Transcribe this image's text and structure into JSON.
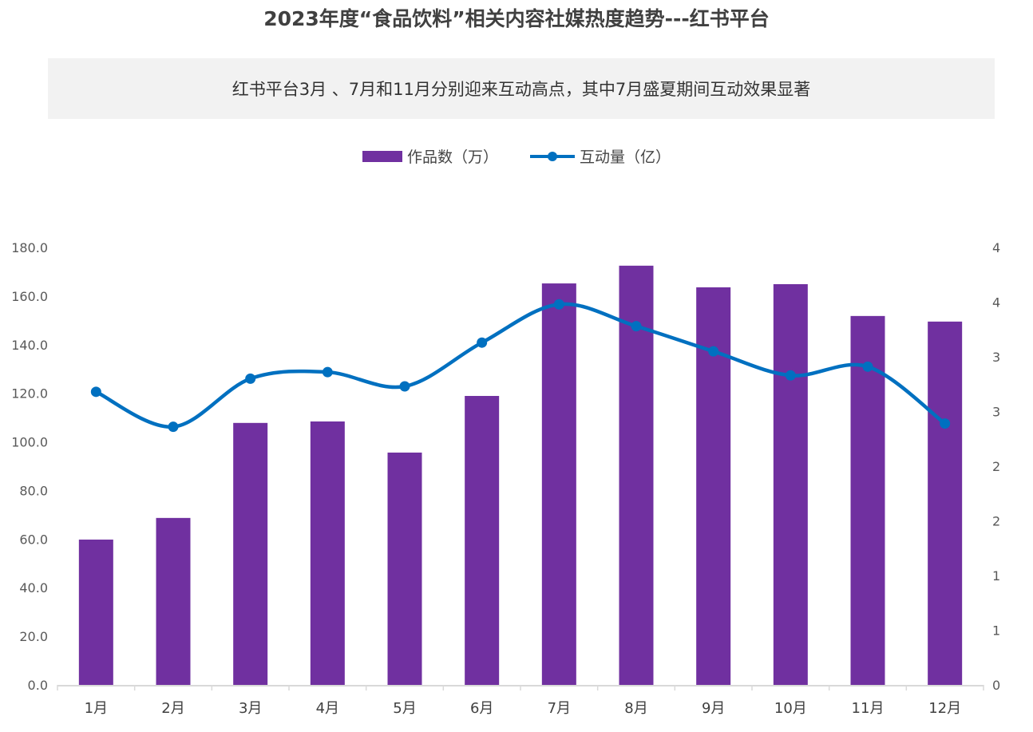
{
  "title": "2023年度“食品饮料”相关内容社媒热度趋势---红书平台",
  "subtitle": "红书平台3月 、7月和11月分别迎来互动高点，其中7月盛夏期间互动效果显著",
  "chart_data": {
    "type": "bar+line",
    "categories": [
      "1月",
      "2月",
      "3月",
      "4月",
      "5月",
      "6月",
      "7月",
      "8月",
      "9月",
      "10月",
      "11月",
      "12月"
    ],
    "series": [
      {
        "name": "作品数（万）",
        "type": "bar",
        "axis": "left",
        "color": "#7030a0",
        "values": [
          59.8,
          68.7,
          107.8,
          108.4,
          95.6,
          118.9,
          165.2,
          172.5,
          163.6,
          164.9,
          151.8,
          149.5
        ]
      },
      {
        "name": "互动量（亿）",
        "type": "line",
        "axis": "right",
        "smooth": true,
        "color": "#0070c0",
        "values": [
          2.68,
          2.36,
          2.8,
          2.86,
          2.73,
          3.13,
          3.48,
          3.28,
          3.05,
          2.83,
          2.91,
          2.39
        ]
      }
    ],
    "y_left": {
      "range": [
        0,
        180
      ],
      "ticks": [
        "0.0",
        "20.0",
        "40.0",
        "60.0",
        "80.0",
        "100.0",
        "120.0",
        "140.0",
        "160.0",
        "180.0"
      ]
    },
    "y_right": {
      "range": [
        0,
        4
      ],
      "ticks": [
        "0",
        "1",
        "1",
        "2",
        "2",
        "3",
        "3",
        "4",
        "4"
      ]
    },
    "legend_position": "top",
    "grid": false
  }
}
